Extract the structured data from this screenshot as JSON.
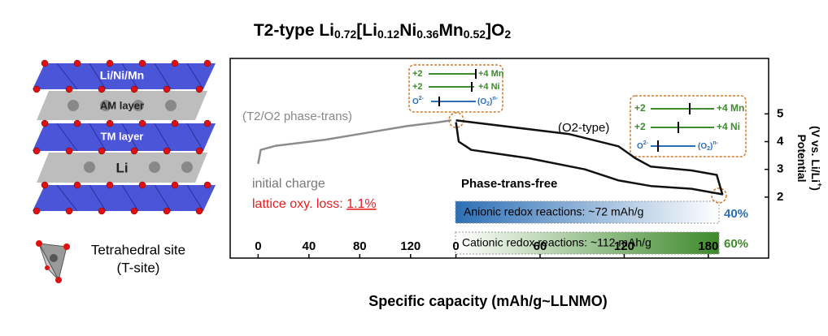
{
  "title": [
    "T2-type Li",
    "0.72",
    "[Li",
    "0.12",
    "Ni",
    "0.36",
    "Mn",
    "0.52",
    "]O",
    "2"
  ],
  "structure": {
    "labels": [
      "Li/Ni/Mn",
      "AM layer",
      "TM layer",
      "Li"
    ],
    "site": [
      "Tetrahedral site",
      "(T-site)"
    ]
  },
  "chart_data": [
    {
      "type": "line",
      "xlim": [
        -22,
        156
      ],
      "xticks": [
        0,
        40,
        80,
        120
      ],
      "ylim": [
        -0.2,
        7
      ],
      "series": [
        {
          "name": "initial charge",
          "color": "#8c8c8c",
          "x": [
            0,
            2,
            14,
            53,
            91,
            117,
            142,
            152
          ],
          "values": [
            3.2,
            3.7,
            3.85,
            4.07,
            4.36,
            4.56,
            4.7,
            4.77
          ]
        }
      ],
      "annotations": [
        "(T2/O2 phase-trans)",
        "lattice oxy. loss: ",
        "1.1%"
      ]
    },
    {
      "type": "line",
      "xlim": [
        -161,
        223
      ],
      "xticks": [
        0,
        60,
        120,
        180
      ],
      "ylim": [
        -0.2,
        7
      ],
      "yticks": [
        2,
        3,
        4,
        5
      ],
      "xlabel": "Specific capacity (mAh/g~LLNMO)",
      "ylabel": [
        "Potential",
        "(V vs. Li/Li",
        "+",
        ")"
      ],
      "series": [
        {
          "name": "(O2-type)",
          "color": "#111111",
          "x": [
            0,
            81,
            116,
            128,
            139,
            168,
            186,
            190,
            168,
            139,
            116,
            92,
            52,
            11,
            2,
            0
          ],
          "values": [
            4.77,
            4.27,
            3.83,
            3.4,
            3.1,
            2.96,
            2.8,
            2.1,
            2.3,
            2.4,
            2.6,
            3.0,
            3.4,
            3.7,
            4.0,
            4.7
          ]
        }
      ],
      "annotations": [
        "Phase-trans-free"
      ]
    }
  ],
  "redox_boxes": [
    {
      "rows": [
        [
          "+2",
          "+4  Mn"
        ],
        [
          "+2",
          "+4  Ni"
        ],
        [
          "O",
          "2-",
          "(O",
          "2",
          ")",
          "n-"
        ]
      ]
    },
    {
      "rows": [
        [
          "+2",
          "+4 Mn"
        ],
        [
          "+2",
          "+4  Ni"
        ],
        [
          "O",
          "2-",
          "(O",
          "2",
          ")",
          "n-"
        ]
      ]
    }
  ],
  "redox_bars": [
    {
      "label": "Anionic redox reactions: ~72 mAh/g",
      "share": "40%"
    },
    {
      "label": "Cationic redox reactions: ~112 mAh/g",
      "share": "60%"
    }
  ]
}
